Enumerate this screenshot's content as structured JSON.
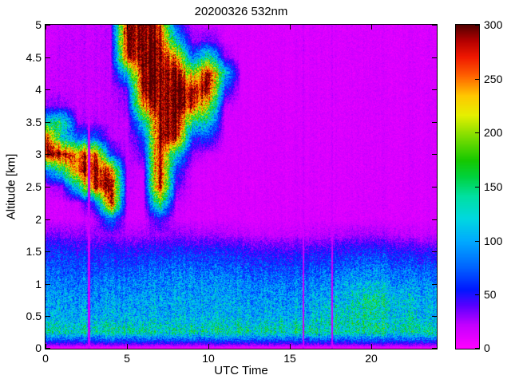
{
  "chart_data": {
    "type": "heatmap",
    "title": "20200326 532nm",
    "xlabel": "UTC Time",
    "ylabel": "Altitude [km]",
    "x_range": [
      0,
      24
    ],
    "y_range": [
      0,
      5
    ],
    "value_range": [
      0,
      300
    ],
    "x_ticks": [
      0,
      5,
      10,
      15,
      20
    ],
    "y_ticks": [
      0,
      0.5,
      1,
      1.5,
      2,
      2.5,
      3,
      3.5,
      4,
      4.5,
      5
    ],
    "colorbar_ticks": [
      0,
      50,
      100,
      150,
      200,
      250,
      300
    ],
    "colorbar_position": "right",
    "grid_on": false,
    "background_color": "#ffffff",
    "colormap": [
      [
        0.0,
        "#ff00ff"
      ],
      [
        0.07,
        "#c400ff"
      ],
      [
        0.13,
        "#5a00ff"
      ],
      [
        0.18,
        "#0018ff"
      ],
      [
        0.25,
        "#0064ff"
      ],
      [
        0.33,
        "#00aaff"
      ],
      [
        0.4,
        "#00d8e0"
      ],
      [
        0.47,
        "#00e0a0"
      ],
      [
        0.53,
        "#00d23c"
      ],
      [
        0.58,
        "#16c800"
      ],
      [
        0.65,
        "#78dc00"
      ],
      [
        0.72,
        "#e6f000"
      ],
      [
        0.78,
        "#ffc800"
      ],
      [
        0.84,
        "#ff6400"
      ],
      [
        0.9,
        "#f01800"
      ],
      [
        0.95,
        "#b40000"
      ],
      [
        1.0,
        "#500000"
      ]
    ],
    "grid_t_start": 0,
    "grid_t_step": 1,
    "grid_alt_start": 0,
    "grid_alt_step": 0.25,
    "grid_rows_from": "bottom",
    "grid": [
      [
        3,
        3,
        3,
        3,
        3,
        3,
        3,
        3,
        3,
        3,
        3,
        3,
        3,
        3,
        3,
        3,
        3,
        3,
        3,
        3,
        3,
        3,
        3,
        3,
        3
      ],
      [
        135,
        135,
        135,
        135,
        135,
        135,
        135,
        135,
        135,
        135,
        135,
        135,
        135,
        135,
        135,
        135,
        135,
        135,
        135,
        135,
        135,
        135,
        135,
        135,
        135
      ],
      [
        105,
        105,
        105,
        105,
        105,
        105,
        105,
        105,
        105,
        105,
        105,
        105,
        105,
        105,
        105,
        105,
        105,
        118,
        128,
        128,
        128,
        125,
        120,
        112,
        108
      ],
      [
        98,
        98,
        98,
        96,
        96,
        96,
        98,
        100,
        100,
        100,
        98,
        98,
        96,
        96,
        95,
        95,
        96,
        105,
        115,
        120,
        145,
        120,
        115,
        105,
        100
      ],
      [
        88,
        88,
        86,
        84,
        84,
        84,
        88,
        92,
        92,
        92,
        90,
        88,
        86,
        84,
        82,
        82,
        84,
        90,
        95,
        100,
        105,
        100,
        95,
        90,
        86
      ],
      [
        72,
        72,
        70,
        68,
        66,
        66,
        70,
        76,
        78,
        76,
        74,
        72,
        70,
        66,
        64,
        64,
        66,
        70,
        74,
        78,
        80,
        78,
        74,
        70,
        66
      ],
      [
        58,
        58,
        56,
        54,
        52,
        50,
        52,
        56,
        58,
        56,
        54,
        52,
        50,
        46,
        44,
        44,
        46,
        48,
        52,
        55,
        56,
        54,
        50,
        46,
        44
      ],
      [
        34,
        34,
        32,
        30,
        28,
        26,
        26,
        28,
        30,
        28,
        26,
        24,
        22,
        20,
        20,
        20,
        20,
        22,
        24,
        26,
        26,
        24,
        22,
        20,
        20
      ],
      [
        16,
        16,
        16,
        20,
        80,
        16,
        15,
        50,
        16,
        15,
        14,
        14,
        14,
        14,
        14,
        14,
        14,
        14,
        14,
        14,
        14,
        14,
        14,
        14,
        14
      ],
      [
        15,
        15,
        20,
        60,
        280,
        18,
        16,
        180,
        20,
        15,
        14,
        14,
        14,
        14,
        14,
        14,
        14,
        14,
        14,
        14,
        14,
        14,
        14,
        14,
        14
      ],
      [
        20,
        30,
        140,
        290,
        290,
        20,
        16,
        300,
        40,
        15,
        14,
        14,
        14,
        14,
        14,
        14,
        14,
        14,
        14,
        14,
        14,
        14,
        14,
        14,
        14
      ],
      [
        80,
        150,
        280,
        300,
        250,
        20,
        18,
        300,
        60,
        16,
        14,
        14,
        14,
        14,
        14,
        14,
        14,
        14,
        14,
        14,
        14,
        14,
        14,
        14,
        14
      ],
      [
        300,
        300,
        260,
        280,
        60,
        20,
        40,
        300,
        120,
        30,
        16,
        14,
        14,
        14,
        14,
        14,
        14,
        14,
        14,
        14,
        14,
        14,
        14,
        14,
        14
      ],
      [
        280,
        120,
        80,
        80,
        22,
        20,
        60,
        300,
        290,
        60,
        60,
        15,
        14,
        14,
        14,
        14,
        14,
        14,
        14,
        14,
        14,
        14,
        14,
        14,
        14
      ],
      [
        120,
        150,
        25,
        25,
        20,
        20,
        120,
        300,
        300,
        150,
        120,
        15,
        14,
        14,
        14,
        14,
        14,
        14,
        14,
        14,
        14,
        14,
        14,
        14,
        14
      ],
      [
        30,
        30,
        20,
        20,
        20,
        30,
        250,
        300,
        300,
        280,
        200,
        20,
        14,
        14,
        14,
        14,
        14,
        14,
        14,
        14,
        14,
        14,
        14,
        14,
        14
      ],
      [
        20,
        20,
        20,
        20,
        20,
        40,
        300,
        300,
        300,
        290,
        290,
        60,
        14,
        14,
        14,
        14,
        14,
        14,
        14,
        14,
        14,
        14,
        14,
        14,
        14
      ],
      [
        18,
        20,
        20,
        20,
        20,
        120,
        300,
        300,
        300,
        200,
        290,
        120,
        15,
        14,
        14,
        14,
        14,
        14,
        14,
        14,
        14,
        14,
        14,
        14,
        14
      ],
      [
        16,
        20,
        20,
        20,
        20,
        280,
        300,
        300,
        250,
        80,
        150,
        30,
        14,
        14,
        14,
        14,
        14,
        14,
        14,
        14,
        14,
        14,
        14,
        14,
        14
      ],
      [
        15,
        20,
        20,
        20,
        20,
        300,
        300,
        300,
        120,
        30,
        40,
        16,
        14,
        14,
        14,
        14,
        14,
        14,
        14,
        14,
        14,
        14,
        14,
        14,
        14
      ],
      [
        15,
        20,
        20,
        20,
        20,
        300,
        300,
        280,
        60,
        20,
        16,
        14,
        14,
        14,
        14,
        14,
        14,
        14,
        14,
        14,
        14,
        14,
        14,
        14,
        14
      ]
    ],
    "stripes": [
      {
        "t": 2.65,
        "width": 0.14,
        "value": 18
      },
      {
        "t": 15.85,
        "width": 0.1,
        "value": 18
      },
      {
        "t": 17.6,
        "width": 0.12,
        "value": 18
      }
    ]
  }
}
